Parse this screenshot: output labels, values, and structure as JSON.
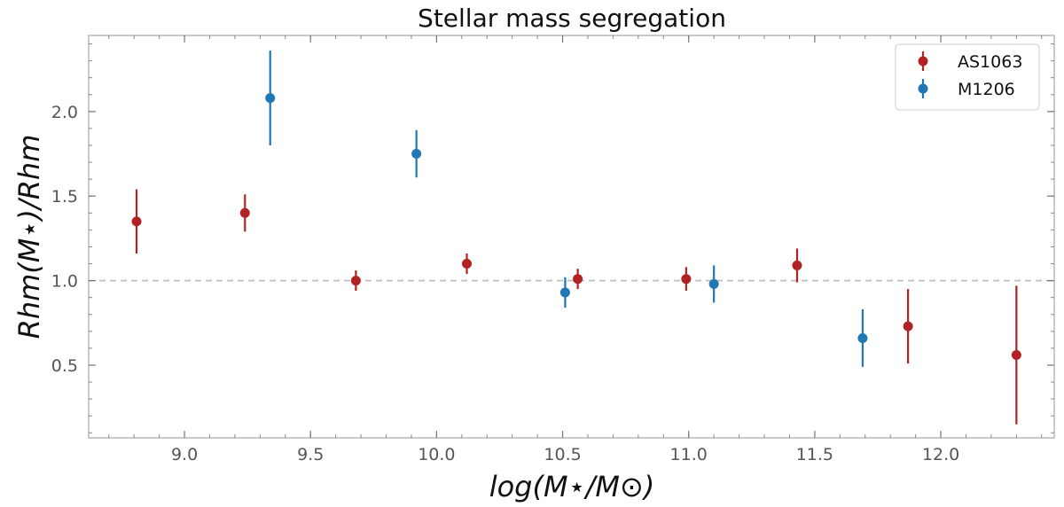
{
  "chart_data": {
    "type": "scatter",
    "title": "Stellar mass segregation",
    "xlabel": "log(M⋆/M⊙)",
    "ylabel": "Rhm(M⋆)/Rhm",
    "xlim": [
      8.62,
      12.45
    ],
    "ylim": [
      0.07,
      2.45
    ],
    "x_ticks": [
      9.0,
      9.5,
      10.0,
      10.5,
      11.0,
      11.5,
      12.0
    ],
    "x_tick_labels": [
      "9.0",
      "9.5",
      "10.0",
      "10.5",
      "11.0",
      "11.5",
      "12.0"
    ],
    "y_ticks": [
      0.5,
      1.0,
      1.5,
      2.0
    ],
    "y_tick_labels": [
      "0.5",
      "1.0",
      "1.5",
      "2.0"
    ],
    "reference_line": {
      "y": 1.0,
      "style": "dashed",
      "color": "#bbbbbb"
    },
    "legend_position": "top-right",
    "grid": false,
    "series": [
      {
        "name": "AS1063",
        "color": "#b22222",
        "x": [
          8.81,
          9.24,
          9.68,
          10.12,
          10.56,
          10.99,
          11.43,
          11.87,
          12.3
        ],
        "y": [
          1.35,
          1.4,
          1.0,
          1.1,
          1.01,
          1.01,
          1.09,
          0.73,
          0.56
        ],
        "yerr": [
          0.19,
          0.11,
          0.06,
          0.06,
          0.06,
          0.07,
          0.1,
          0.22,
          0.41
        ]
      },
      {
        "name": "M1206",
        "color": "#1f77b4",
        "x": [
          9.34,
          9.92,
          10.51,
          11.1,
          11.69
        ],
        "y": [
          2.08,
          1.75,
          0.93,
          0.98,
          0.66
        ],
        "yerr": [
          0.28,
          0.14,
          0.09,
          0.11,
          0.17
        ]
      }
    ]
  }
}
